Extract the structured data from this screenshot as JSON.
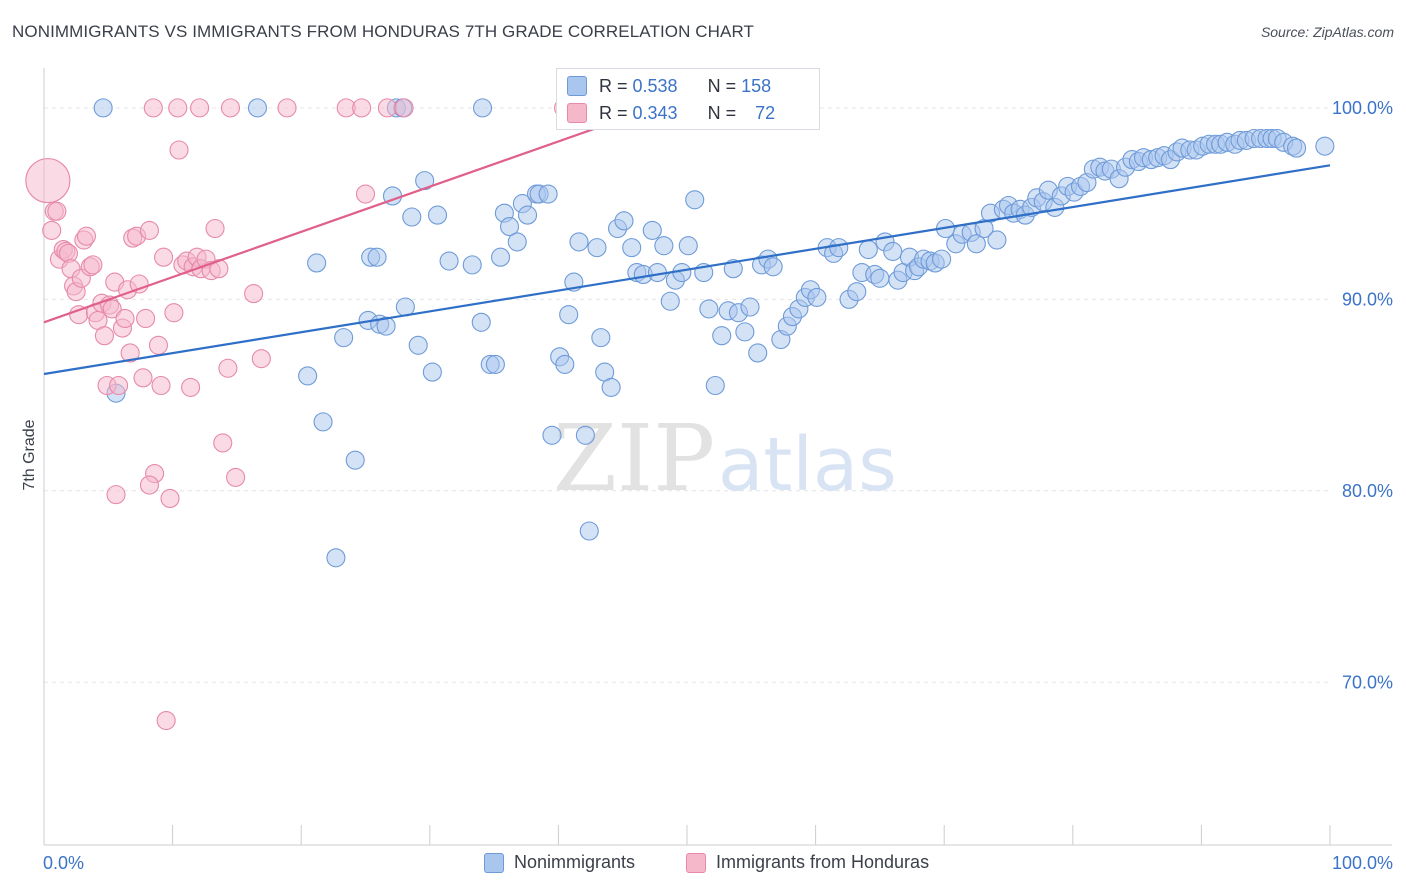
{
  "title": "NONIMMIGRANTS VS IMMIGRANTS FROM HONDURAS 7TH GRADE CORRELATION CHART",
  "source": "Source: ZipAtlas.com",
  "watermark": {
    "zip": "ZIP",
    "atlas": "atlas"
  },
  "colors": {
    "blue_fill": "#a9c6ee",
    "blue_stroke": "#6e9bd8",
    "blue_line": "#2f6fc7",
    "pink_fill": "#f5b8cb",
    "pink_stroke": "#e68aa8",
    "pink_line": "#e0608b",
    "axis_text": "#3b73c8",
    "grid": "#e3e6ea"
  },
  "stats": {
    "blue": {
      "r_label": "R = ",
      "r_value": "0.538",
      "n_label": "N = ",
      "n_value": "158"
    },
    "pink": {
      "r_label": "R = ",
      "r_value": "0.343",
      "n_label": "N = ",
      "n_value": "72"
    }
  },
  "legend": {
    "blue": "Nonimmigrants",
    "pink": "Immigrants from Honduras"
  },
  "chart_data": {
    "type": "scatter",
    "xlabel": "",
    "ylabel": "7th Grade",
    "xlim": [
      0,
      100
    ],
    "ylim": [
      61.5,
      102.5
    ],
    "x_tick_labels": [
      {
        "value": 0,
        "label": "0.0%"
      },
      {
        "value": 100,
        "label": "100.0%"
      }
    ],
    "y_tick_labels": [
      {
        "value": 100,
        "label": "100.0%"
      },
      {
        "value": 90,
        "label": "90.0%"
      },
      {
        "value": 80,
        "label": "80.0%"
      },
      {
        "value": 70,
        "label": "70.0%"
      }
    ],
    "grid": true,
    "legend_position": "bottom-center",
    "series": [
      {
        "name": "Nonimmigrants",
        "color": "#a9c6ee",
        "trend": {
          "x": [
            0,
            100
          ],
          "y": [
            86.1,
            97.0
          ]
        },
        "points": [
          [
            4.6,
            100
          ],
          [
            16.6,
            100
          ],
          [
            27.4,
            100
          ],
          [
            27.9,
            100
          ],
          [
            34.1,
            100
          ],
          [
            5.6,
            85.1
          ],
          [
            20.5,
            86.0
          ],
          [
            21.2,
            91.9
          ],
          [
            21.7,
            83.6
          ],
          [
            22.7,
            76.5
          ],
          [
            23.3,
            88.0
          ],
          [
            24.2,
            81.6
          ],
          [
            25.2,
            88.9
          ],
          [
            25.4,
            92.2
          ],
          [
            25.9,
            92.2
          ],
          [
            26.1,
            88.7
          ],
          [
            26.6,
            88.6
          ],
          [
            27.1,
            95.4
          ],
          [
            28.1,
            89.6
          ],
          [
            28.6,
            94.3
          ],
          [
            29.1,
            87.6
          ],
          [
            29.6,
            96.2
          ],
          [
            30.2,
            86.2
          ],
          [
            30.6,
            94.4
          ],
          [
            31.5,
            92.0
          ],
          [
            33.3,
            91.8
          ],
          [
            34.0,
            88.8
          ],
          [
            34.7,
            86.6
          ],
          [
            35.1,
            86.6
          ],
          [
            35.5,
            92.2
          ],
          [
            35.8,
            94.5
          ],
          [
            36.2,
            93.8
          ],
          [
            36.8,
            93.0
          ],
          [
            37.2,
            95.0
          ],
          [
            37.6,
            94.4
          ],
          [
            38.3,
            95.5
          ],
          [
            38.5,
            95.5
          ],
          [
            39.2,
            95.5
          ],
          [
            39.5,
            82.9
          ],
          [
            40.1,
            87.0
          ],
          [
            40.5,
            86.6
          ],
          [
            40.8,
            89.2
          ],
          [
            41.2,
            90.9
          ],
          [
            41.6,
            93.0
          ],
          [
            42.1,
            82.9
          ],
          [
            42.4,
            77.9
          ],
          [
            43.0,
            92.7
          ],
          [
            43.3,
            88.0
          ],
          [
            43.6,
            86.2
          ],
          [
            44.1,
            85.4
          ],
          [
            44.6,
            93.7
          ],
          [
            45.1,
            94.1
          ],
          [
            45.7,
            92.7
          ],
          [
            46.1,
            91.4
          ],
          [
            46.6,
            91.3
          ],
          [
            47.3,
            93.6
          ],
          [
            47.7,
            91.4
          ],
          [
            48.2,
            92.8
          ],
          [
            48.7,
            89.9
          ],
          [
            49.1,
            91.0
          ],
          [
            49.6,
            91.4
          ],
          [
            50.1,
            92.8
          ],
          [
            50.6,
            95.2
          ],
          [
            51.3,
            91.4
          ],
          [
            51.7,
            89.5
          ],
          [
            52.2,
            85.5
          ],
          [
            52.7,
            88.1
          ],
          [
            53.2,
            89.4
          ],
          [
            53.6,
            91.6
          ],
          [
            54.0,
            89.3
          ],
          [
            54.5,
            88.3
          ],
          [
            54.9,
            89.6
          ],
          [
            55.5,
            87.2
          ],
          [
            55.8,
            91.8
          ],
          [
            56.3,
            92.1
          ],
          [
            56.7,
            91.7
          ],
          [
            57.3,
            87.9
          ],
          [
            57.8,
            88.6
          ],
          [
            58.2,
            89.1
          ],
          [
            58.7,
            89.5
          ],
          [
            59.2,
            90.1
          ],
          [
            59.6,
            90.5
          ],
          [
            60.1,
            90.1
          ],
          [
            60.9,
            92.7
          ],
          [
            61.4,
            92.4
          ],
          [
            61.8,
            92.7
          ],
          [
            62.6,
            90.0
          ],
          [
            63.2,
            90.4
          ],
          [
            63.6,
            91.4
          ],
          [
            64.1,
            92.6
          ],
          [
            64.6,
            91.3
          ],
          [
            65.0,
            91.1
          ],
          [
            65.4,
            93.0
          ],
          [
            66.0,
            92.5
          ],
          [
            66.4,
            91.0
          ],
          [
            66.8,
            91.4
          ],
          [
            67.3,
            92.2
          ],
          [
            67.7,
            91.5
          ],
          [
            68.0,
            91.7
          ],
          [
            68.4,
            92.1
          ],
          [
            68.9,
            92.0
          ],
          [
            69.3,
            91.9
          ],
          [
            69.8,
            92.1
          ],
          [
            70.1,
            93.7
          ],
          [
            70.9,
            92.9
          ],
          [
            71.4,
            93.4
          ],
          [
            72.1,
            93.5
          ],
          [
            72.5,
            92.9
          ],
          [
            73.1,
            93.7
          ],
          [
            73.6,
            94.5
          ],
          [
            74.1,
            93.1
          ],
          [
            74.6,
            94.7
          ],
          [
            75.0,
            94.9
          ],
          [
            75.4,
            94.5
          ],
          [
            75.9,
            94.7
          ],
          [
            76.3,
            94.4
          ],
          [
            76.8,
            94.8
          ],
          [
            77.2,
            95.3
          ],
          [
            77.7,
            95.1
          ],
          [
            78.1,
            95.7
          ],
          [
            78.6,
            94.8
          ],
          [
            79.1,
            95.4
          ],
          [
            79.6,
            95.9
          ],
          [
            80.1,
            95.6
          ],
          [
            80.6,
            95.9
          ],
          [
            81.1,
            96.1
          ],
          [
            81.6,
            96.8
          ],
          [
            82.1,
            96.9
          ],
          [
            82.5,
            96.7
          ],
          [
            83.0,
            96.8
          ],
          [
            83.6,
            96.3
          ],
          [
            84.1,
            96.9
          ],
          [
            84.6,
            97.3
          ],
          [
            85.1,
            97.2
          ],
          [
            85.5,
            97.4
          ],
          [
            86.1,
            97.3
          ],
          [
            86.6,
            97.4
          ],
          [
            87.1,
            97.5
          ],
          [
            87.6,
            97.3
          ],
          [
            88.1,
            97.7
          ],
          [
            88.5,
            97.9
          ],
          [
            89.1,
            97.8
          ],
          [
            89.6,
            97.8
          ],
          [
            90.1,
            98.0
          ],
          [
            90.6,
            98.1
          ],
          [
            91.1,
            98.1
          ],
          [
            91.5,
            98.1
          ],
          [
            92.0,
            98.2
          ],
          [
            92.6,
            98.1
          ],
          [
            93.0,
            98.3
          ],
          [
            93.5,
            98.3
          ],
          [
            94.1,
            98.4
          ],
          [
            94.6,
            98.4
          ],
          [
            95.1,
            98.4
          ],
          [
            95.5,
            98.4
          ],
          [
            95.9,
            98.4
          ],
          [
            96.4,
            98.2
          ],
          [
            97.1,
            98.0
          ],
          [
            99.6,
            98.0
          ],
          [
            97.4,
            97.9
          ]
        ]
      },
      {
        "name": "Immigrants from Honduras",
        "color": "#f5b8cb",
        "trend": {
          "x": [
            0,
            47
          ],
          "y": [
            88.8,
            99.9
          ]
        },
        "points": [
          [
            0.3,
            96.2
          ],
          [
            0.6,
            93.6
          ],
          [
            0.8,
            94.6
          ],
          [
            1.0,
            94.6
          ],
          [
            1.2,
            92.1
          ],
          [
            1.5,
            92.6
          ],
          [
            1.7,
            92.5
          ],
          [
            1.9,
            92.4
          ],
          [
            2.1,
            91.6
          ],
          [
            2.3,
            90.7
          ],
          [
            2.5,
            90.4
          ],
          [
            2.7,
            89.2
          ],
          [
            2.9,
            91.1
          ],
          [
            3.1,
            93.1
          ],
          [
            3.3,
            93.3
          ],
          [
            3.6,
            91.7
          ],
          [
            3.8,
            91.8
          ],
          [
            4.0,
            89.3
          ],
          [
            4.2,
            88.9
          ],
          [
            4.5,
            89.8
          ],
          [
            4.7,
            88.1
          ],
          [
            4.9,
            85.5
          ],
          [
            5.1,
            89.7
          ],
          [
            5.3,
            89.5
          ],
          [
            5.5,
            90.9
          ],
          [
            5.8,
            85.5
          ],
          [
            6.1,
            88.5
          ],
          [
            6.3,
            89.0
          ],
          [
            6.5,
            90.5
          ],
          [
            6.7,
            87.2
          ],
          [
            6.9,
            93.2
          ],
          [
            7.2,
            93.3
          ],
          [
            7.4,
            90.8
          ],
          [
            7.7,
            85.9
          ],
          [
            7.9,
            89.0
          ],
          [
            8.2,
            93.6
          ],
          [
            8.6,
            80.9
          ],
          [
            8.9,
            87.6
          ],
          [
            9.1,
            85.5
          ],
          [
            9.3,
            92.2
          ],
          [
            9.5,
            68.0
          ],
          [
            9.8,
            79.6
          ],
          [
            10.1,
            89.3
          ],
          [
            10.5,
            97.8
          ],
          [
            10.8,
            91.8
          ],
          [
            11.1,
            92.0
          ],
          [
            11.4,
            85.4
          ],
          [
            11.6,
            91.7
          ],
          [
            11.9,
            92.2
          ],
          [
            12.2,
            91.6
          ],
          [
            12.6,
            92.1
          ],
          [
            13.0,
            91.5
          ],
          [
            13.3,
            93.7
          ],
          [
            13.6,
            91.6
          ],
          [
            13.9,
            82.5
          ],
          [
            14.3,
            86.4
          ],
          [
            14.9,
            80.7
          ],
          [
            16.3,
            90.3
          ],
          [
            16.9,
            86.9
          ],
          [
            8.2,
            80.3
          ],
          [
            5.6,
            79.8
          ],
          [
            8.5,
            100
          ],
          [
            10.4,
            100
          ],
          [
            12.1,
            100
          ],
          [
            14.5,
            100
          ],
          [
            18.9,
            100
          ],
          [
            23.5,
            100
          ],
          [
            24.7,
            100
          ],
          [
            26.7,
            100
          ],
          [
            28.0,
            100
          ],
          [
            40.4,
            100
          ],
          [
            25.0,
            95.5
          ]
        ]
      }
    ]
  }
}
